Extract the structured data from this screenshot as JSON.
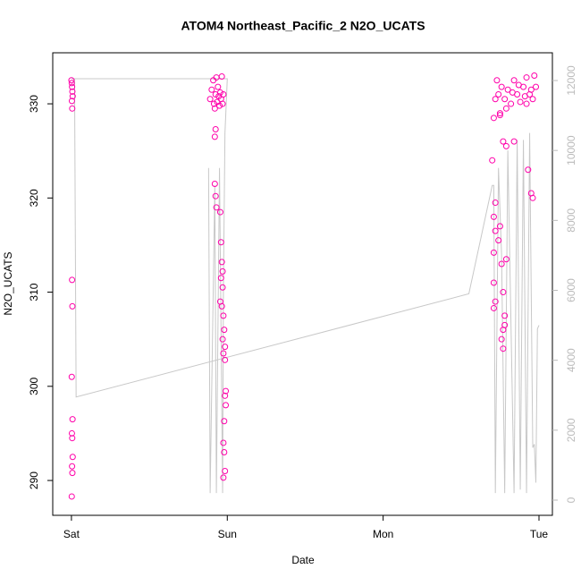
{
  "chart_data": {
    "type": "scatter",
    "title": "ATOM4 Northeast_Pacific_2 N2O_UCATS",
    "xlabel": "Date",
    "ylabel": "N2O_UCATS",
    "xlim": [
      -0.12,
      3.086
    ],
    "xticks": [
      {
        "value": 0,
        "label": "Sat"
      },
      {
        "value": 1,
        "label": "Sun"
      },
      {
        "value": 2,
        "label": "Mon"
      },
      {
        "value": 3,
        "label": "Tue"
      }
    ],
    "ylim": [
      286.3,
      335.42
    ],
    "yticks": [
      290,
      300,
      310,
      320,
      330
    ],
    "y2lim": [
      -435,
      12793
    ],
    "y2ticks": [
      0,
      2000,
      4000,
      6000,
      8000,
      10000,
      12000
    ],
    "series": [
      {
        "color": "#ff00aa",
        "x": [
          0.0,
          0.002,
          0.004,
          0.006,
          0.008,
          0.003,
          0.005,
          0.004,
          0.006,
          0.002,
          0.007,
          0.003,
          0.005,
          0.008,
          0.004,
          0.006,
          0.002,
          0.89,
          0.9,
          0.91,
          0.915,
          0.92,
          0.925,
          0.93,
          0.935,
          0.94,
          0.945,
          0.95,
          0.955,
          0.96,
          0.965,
          0.97,
          0.975,
          0.92,
          0.925,
          0.92,
          0.925,
          0.93,
          0.955,
          0.96,
          0.965,
          0.97,
          0.96,
          0.97,
          0.955,
          0.965,
          0.975,
          0.98,
          0.97,
          0.985,
          0.975,
          0.985,
          0.99,
          0.985,
          0.99,
          0.98,
          0.975,
          0.98,
          0.985,
          0.975,
          2.71,
          2.72,
          2.73,
          2.74,
          2.75,
          2.76,
          2.78,
          2.8,
          2.82,
          2.84,
          2.86,
          2.88,
          2.9,
          2.92,
          2.94,
          2.96,
          2.97,
          2.98,
          2.75,
          2.79,
          2.83,
          2.87,
          2.91,
          2.95,
          2.77,
          2.79,
          2.7,
          2.72,
          2.71,
          2.72,
          2.71,
          2.71,
          2.72,
          2.71,
          2.74,
          2.76,
          2.77,
          2.78,
          2.77,
          2.76,
          2.77,
          2.78,
          2.79,
          2.75,
          2.84,
          2.93,
          2.95,
          2.96,
          2.92
        ],
        "values": [
          332.5,
          332.2,
          331.8,
          331.3,
          330.8,
          330.3,
          329.5,
          311.3,
          308.5,
          301.0,
          296.5,
          295.0,
          294.5,
          292.5,
          291.5,
          290.8,
          288.3,
          330.5,
          331.5,
          332.5,
          330,
          329.5,
          331,
          332.8,
          330.2,
          331.8,
          330.8,
          329.8,
          331.2,
          330.5,
          332.9,
          330,
          331,
          326.5,
          327.3,
          321.5,
          320.2,
          319,
          318.5,
          315.3,
          313.2,
          312.2,
          311.5,
          310.5,
          309,
          308.5,
          307.5,
          306,
          305,
          304.2,
          303.5,
          302.8,
          299.5,
          299,
          298,
          296.3,
          294,
          293,
          291,
          290.3,
          328.5,
          330.5,
          332.5,
          331,
          329,
          331.8,
          330.5,
          331.5,
          330,
          332.5,
          331,
          330.2,
          331.8,
          332.8,
          331,
          330.5,
          333,
          331.8,
          328.8,
          329.5,
          331.2,
          332,
          330.8,
          331.5,
          326,
          325.5,
          324,
          319.5,
          318,
          316.5,
          314.2,
          311,
          309,
          308.3,
          315.5,
          313,
          310,
          307.5,
          306,
          305,
          304,
          306.5,
          313.5,
          317,
          326,
          323,
          320.5,
          320,
          330
        ]
      },
      {
        "color": "#c8c8c8",
        "axis": "y2",
        "x": [
          0.88,
          0.89,
          0.92,
          0.93,
          0.95,
          0.97,
          0.975,
          0.985,
          0.99,
          1.0,
          0.0,
          0.02,
          0.03,
          2.55,
          2.7,
          2.71,
          2.72,
          2.74,
          2.76,
          2.78,
          2.8,
          2.84,
          2.86,
          2.88,
          2.9,
          2.92,
          2.94,
          2.96,
          2.97,
          2.98,
          2.99,
          3.0
        ],
        "values": [
          9500,
          200,
          9000,
          200,
          9500,
          200,
          6000,
          10500,
          11000,
          12050,
          12050,
          12050,
          2950,
          5900,
          9000,
          9000,
          200,
          9500,
          7000,
          200,
          10000,
          200,
          10300,
          300,
          10300,
          200,
          10500,
          1500,
          1600,
          500,
          4900,
          5000
        ]
      }
    ]
  }
}
